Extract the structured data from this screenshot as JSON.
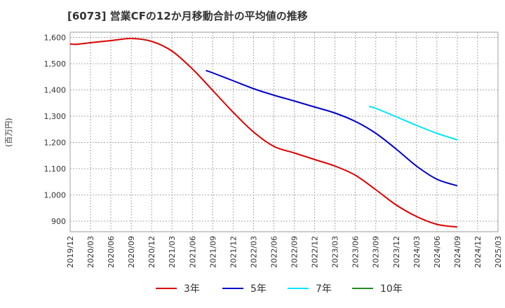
{
  "chart_data": {
    "type": "line",
    "title": "[6073]  営業CFの12か月移動合計の平均値の推移",
    "ylabel": "(百万円)",
    "xlabel": "",
    "ylim": [
      860,
      1620
    ],
    "yticks": [
      900,
      1000,
      1100,
      1200,
      1300,
      1400,
      1500,
      1600
    ],
    "ytick_labels": [
      "900",
      "1,000",
      "1,100",
      "1,200",
      "1,300",
      "1,400",
      "1,500",
      "1,600"
    ],
    "x_categories": [
      "2019/12",
      "2020/03",
      "2020/06",
      "2020/09",
      "2020/12",
      "2021/03",
      "2021/06",
      "2021/09",
      "2021/12",
      "2022/03",
      "2022/06",
      "2022/09",
      "2022/12",
      "2023/03",
      "2023/06",
      "2023/09",
      "2023/12",
      "2024/03",
      "2024/06",
      "2024/09",
      "2024/12",
      "2025/03"
    ],
    "grid": true,
    "legend_position": "bottom",
    "series": [
      {
        "name": "3年",
        "color": "#dd0000",
        "points": [
          [
            "2019/12",
            1575
          ],
          [
            "2020/01",
            1574
          ],
          [
            "2020/03",
            1580
          ],
          [
            "2020/06",
            1588
          ],
          [
            "2020/09",
            1596
          ],
          [
            "2020/12",
            1585
          ],
          [
            "2021/03",
            1548
          ],
          [
            "2021/06",
            1480
          ],
          [
            "2021/09",
            1398
          ],
          [
            "2021/12",
            1315
          ],
          [
            "2022/03",
            1240
          ],
          [
            "2022/06",
            1185
          ],
          [
            "2022/09",
            1160
          ],
          [
            "2022/12",
            1135
          ],
          [
            "2023/03",
            1110
          ],
          [
            "2023/06",
            1075
          ],
          [
            "2023/09",
            1020
          ],
          [
            "2023/12",
            962
          ],
          [
            "2024/03",
            918
          ],
          [
            "2024/06",
            888
          ],
          [
            "2024/09",
            878
          ]
        ]
      },
      {
        "name": "5年",
        "color": "#0000cc",
        "points": [
          [
            "2021/08",
            1474
          ],
          [
            "2021/09",
            1465
          ],
          [
            "2021/12",
            1435
          ],
          [
            "2022/03",
            1405
          ],
          [
            "2022/06",
            1380
          ],
          [
            "2022/09",
            1358
          ],
          [
            "2022/12",
            1335
          ],
          [
            "2023/03",
            1312
          ],
          [
            "2023/06",
            1280
          ],
          [
            "2023/09",
            1235
          ],
          [
            "2023/12",
            1175
          ],
          [
            "2024/03",
            1110
          ],
          [
            "2024/06",
            1060
          ],
          [
            "2024/09",
            1035
          ]
        ]
      },
      {
        "name": "7年",
        "color": "#00e5ff",
        "points": [
          [
            "2023/08",
            1337
          ],
          [
            "2023/09",
            1330
          ],
          [
            "2023/12",
            1298
          ],
          [
            "2024/03",
            1265
          ],
          [
            "2024/06",
            1235
          ],
          [
            "2024/09",
            1210
          ]
        ]
      },
      {
        "name": "10年",
        "color": "#228b22",
        "points": []
      }
    ]
  }
}
